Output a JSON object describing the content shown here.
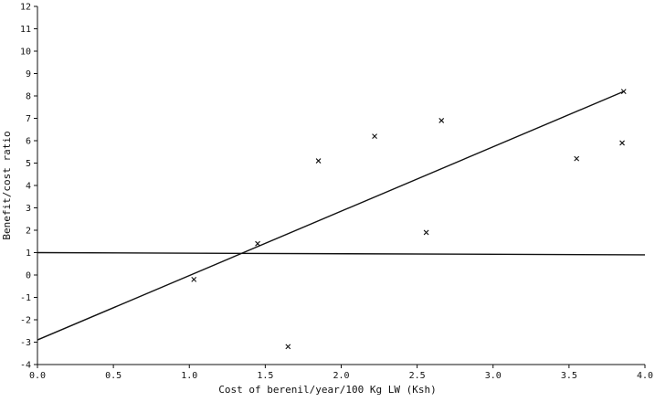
{
  "chart_data": {
    "type": "scatter",
    "title": "",
    "xlabel": "Cost of berenil/year/100 Kg LW (Ksh)",
    "ylabel": "Benefit/cost ratio",
    "xlim": [
      0.0,
      4.0
    ],
    "ylim": [
      -4,
      12
    ],
    "xticks": [
      0.0,
      0.5,
      1.0,
      1.5,
      2.0,
      2.5,
      3.0,
      3.5,
      4.0
    ],
    "xtick_labels": [
      "0.0",
      "0.5",
      "1.0",
      "1.5",
      "2.0",
      "2.5",
      "3.0",
      "3.5",
      "4.0"
    ],
    "yticks": [
      -4,
      -3,
      -2,
      -1,
      0,
      1,
      2,
      3,
      4,
      5,
      6,
      7,
      8,
      9,
      10,
      11,
      12
    ],
    "ytick_labels": [
      "-4",
      "-3",
      "-2",
      "-1",
      "0",
      "1",
      "2",
      "3",
      "4",
      "5",
      "6",
      "7",
      "8",
      "9",
      "10",
      "11",
      "12"
    ],
    "grid": false,
    "marker": "x",
    "points": [
      {
        "x": 1.03,
        "y": -0.2
      },
      {
        "x": 1.45,
        "y": 1.4
      },
      {
        "x": 1.65,
        "y": -3.2
      },
      {
        "x": 1.85,
        "y": 5.1
      },
      {
        "x": 2.22,
        "y": 6.2
      },
      {
        "x": 2.56,
        "y": 1.9
      },
      {
        "x": 2.66,
        "y": 6.9
      },
      {
        "x": 3.55,
        "y": 5.2
      },
      {
        "x": 3.85,
        "y": 5.9
      },
      {
        "x": 3.86,
        "y": 8.2
      }
    ],
    "fit_line": {
      "x": [
        0.0,
        3.86
      ],
      "y": [
        -2.9,
        8.2
      ]
    },
    "reference_line": {
      "x": [
        0.0,
        4.0
      ],
      "y": [
        1.0,
        0.9
      ]
    }
  }
}
